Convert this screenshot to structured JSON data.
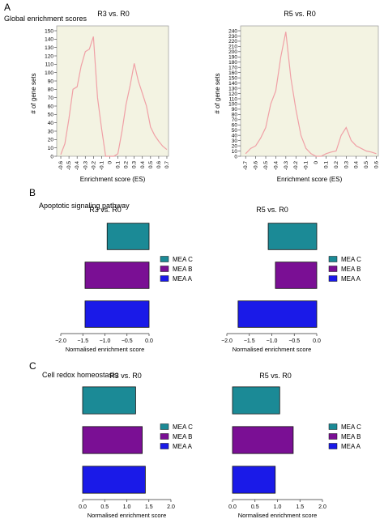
{
  "panels": [
    {
      "letter": "A",
      "caption": "Global enrichment scores"
    },
    {
      "letter": "B",
      "caption": "Apoptotic signaling pathway"
    },
    {
      "letter": "C",
      "caption": "Cell redox homeostasis"
    }
  ],
  "chart_data": [
    {
      "id": "A-left",
      "type": "line",
      "title": "R3 vs. R0",
      "xlabel": "Enrichment score (ES)",
      "ylabel": "# of gene sets",
      "xlim": [
        -0.65,
        0.72
      ],
      "ylim": [
        0,
        150
      ],
      "xticks": [
        -0.6,
        -0.5,
        -0.4,
        -0.3,
        -0.2,
        -0.1,
        0,
        0.1,
        0.2,
        0.3,
        0.4,
        0.5,
        0.6,
        0.7
      ],
      "xtick_labels": [
        "-0.6",
        "-0.5",
        "-0.4",
        "-0.3",
        "-0.2",
        "-0.1",
        "0",
        "0.1",
        "0.2",
        "0.3",
        "0.4",
        "0.5",
        "0.6",
        "0.7"
      ],
      "yticks": [
        0,
        10,
        20,
        30,
        40,
        50,
        60,
        70,
        80,
        90,
        100,
        110,
        120,
        130,
        140,
        150
      ],
      "x": [
        -0.6,
        -0.55,
        -0.5,
        -0.45,
        -0.4,
        -0.35,
        -0.3,
        -0.25,
        -0.2,
        -0.15,
        -0.1,
        -0.05,
        0.0,
        0.05,
        0.1,
        0.15,
        0.2,
        0.25,
        0.3,
        0.35,
        0.4,
        0.45,
        0.5,
        0.55,
        0.6,
        0.65,
        0.7
      ],
      "y": [
        2,
        15,
        45,
        80,
        83,
        108,
        125,
        128,
        143,
        70,
        33,
        0,
        0,
        0,
        3,
        30,
        62,
        85,
        111,
        90,
        75,
        60,
        35,
        25,
        18,
        12,
        8
      ],
      "line_color": "#f0a0a6",
      "background": "#f3f3e2"
    },
    {
      "id": "A-right",
      "type": "line",
      "title": "R5 vs. R0",
      "xlabel": "Enrichment score (ES)",
      "ylabel": "# of gene sets",
      "xlim": [
        -0.75,
        0.62
      ],
      "ylim": [
        0,
        240
      ],
      "xticks": [
        -0.7,
        -0.6,
        -0.5,
        -0.4,
        -0.3,
        -0.2,
        -0.1,
        0,
        0.1,
        0.2,
        0.3,
        0.4,
        0.5,
        0.6
      ],
      "xtick_labels": [
        "-0.7",
        "-0.6",
        "-0.5",
        "-0.4",
        "-0.3",
        "-0.2",
        "-0.1",
        "0",
        "0.1",
        "0.2",
        "0.3",
        "0.4",
        "0.5",
        "0.6"
      ],
      "yticks": [
        0,
        10,
        20,
        30,
        40,
        50,
        60,
        70,
        80,
        90,
        100,
        110,
        120,
        130,
        140,
        150,
        160,
        170,
        180,
        190,
        200,
        210,
        220,
        230,
        240
      ],
      "x": [
        -0.7,
        -0.65,
        -0.6,
        -0.55,
        -0.5,
        -0.45,
        -0.4,
        -0.35,
        -0.3,
        -0.25,
        -0.2,
        -0.15,
        -0.1,
        -0.05,
        0.0,
        0.05,
        0.1,
        0.15,
        0.2,
        0.25,
        0.3,
        0.35,
        0.4,
        0.45,
        0.5,
        0.55,
        0.6
      ],
      "y": [
        5,
        15,
        20,
        35,
        55,
        100,
        125,
        190,
        238,
        150,
        90,
        40,
        15,
        5,
        0,
        0,
        5,
        8,
        10,
        40,
        55,
        30,
        20,
        15,
        10,
        8,
        5
      ],
      "line_color": "#f0a0a6",
      "background": "#f3f3e2"
    },
    {
      "id": "B-left",
      "type": "bar",
      "orientation": "horizontal",
      "title": "R3 vs. R0",
      "xlabel": "Normalised enrichment score",
      "xlim": [
        -2.0,
        0.0
      ],
      "xticks": [
        -2.0,
        -1.5,
        -1.0,
        -0.5,
        0.0
      ],
      "xtick_labels": [
        "−2.0",
        "−1.5",
        "−1.0",
        "−0.5",
        "0.0"
      ],
      "categories": [
        "MEA C",
        "MEA B",
        "MEA A"
      ],
      "values": [
        -0.95,
        -1.45,
        -1.45
      ],
      "colors": [
        "#1b8a96",
        "#7a0f94",
        "#1a1ae8"
      ],
      "legend_position": "right"
    },
    {
      "id": "B-right",
      "type": "bar",
      "orientation": "horizontal",
      "title": "R5 vs. R0",
      "xlabel": "Normalised enrichment score",
      "xlim": [
        -2.0,
        0.0
      ],
      "xticks": [
        -2.0,
        -1.5,
        -1.0,
        -0.5,
        0.0
      ],
      "xtick_labels": [
        "−2.0",
        "−1.5",
        "−1.0",
        "−0.5",
        "0.0"
      ],
      "categories": [
        "MEA C",
        "MEA B",
        "MEA A"
      ],
      "values": [
        -1.08,
        -0.92,
        -1.75
      ],
      "colors": [
        "#1b8a96",
        "#7a0f94",
        "#1a1ae8"
      ],
      "legend_position": "right"
    },
    {
      "id": "C-left",
      "type": "bar",
      "orientation": "horizontal",
      "title": "R3 vs. R0",
      "xlabel": "Normalised enrichment score",
      "xlim": [
        0.0,
        2.0
      ],
      "xticks": [
        0.0,
        0.5,
        1.0,
        1.5,
        2.0
      ],
      "xtick_labels": [
        "0.0",
        "0.5",
        "1.0",
        "1.5",
        "2.0"
      ],
      "categories": [
        "MEA C",
        "MEA B",
        "MEA A"
      ],
      "values": [
        1.2,
        1.35,
        1.42
      ],
      "colors": [
        "#1b8a96",
        "#7a0f94",
        "#1a1ae8"
      ],
      "legend_position": "right"
    },
    {
      "id": "C-right",
      "type": "bar",
      "orientation": "horizontal",
      "title": "R5 vs. R0",
      "xlabel": "Normalised enrichment score",
      "xlim": [
        0.0,
        2.0
      ],
      "xticks": [
        0.0,
        0.5,
        1.0,
        1.5,
        2.0
      ],
      "xtick_labels": [
        "0.0",
        "0.5",
        "1.0",
        "1.5",
        "2.0"
      ],
      "categories": [
        "MEA C",
        "MEA B",
        "MEA A"
      ],
      "values": [
        1.05,
        1.35,
        0.95
      ],
      "colors": [
        "#1b8a96",
        "#7a0f94",
        "#1a1ae8"
      ],
      "legend_position": "right"
    }
  ]
}
